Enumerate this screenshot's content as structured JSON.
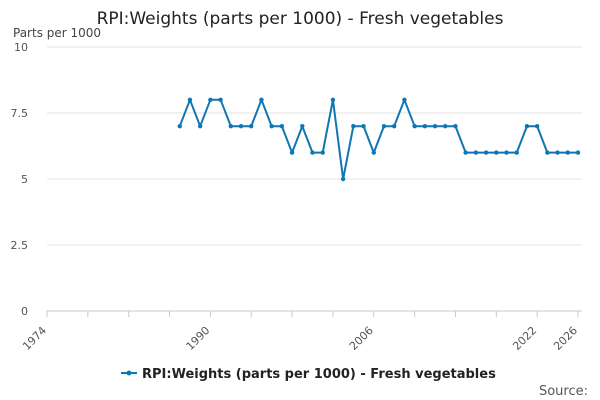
{
  "chart_data": {
    "type": "line",
    "title": "RPI:Weights (parts per 1000) - Fresh vegetables",
    "ylabel": "Parts per 1000",
    "xlabel": "",
    "xlim": [
      1974,
      2026
    ],
    "ylim": [
      0,
      10
    ],
    "y_ticks": [
      "0",
      "2.5",
      "5",
      "7.5",
      "10"
    ],
    "y_tick_values": [
      0,
      2.5,
      5,
      7.5,
      10
    ],
    "x_ticks": [
      "1974",
      "1990",
      "2006",
      "2022",
      "2026"
    ],
    "x_tick_values": [
      1974,
      1990,
      2006,
      2022,
      2026
    ],
    "x_minor_ticks": [
      1978,
      1982,
      1986,
      1994,
      1998,
      2002,
      2010,
      2014,
      2018
    ],
    "grid": true,
    "legend_position": "bottom",
    "series": [
      {
        "name": "RPI:Weights (parts per 1000) - Fresh vegetables",
        "color": "#0e76b3",
        "x": [
          1987,
          1988,
          1989,
          1990,
          1991,
          1992,
          1993,
          1994,
          1995,
          1996,
          1997,
          1998,
          1999,
          2000,
          2001,
          2002,
          2003,
          2004,
          2005,
          2006,
          2007,
          2008,
          2009,
          2010,
          2011,
          2012,
          2013,
          2014,
          2015,
          2016,
          2017,
          2018,
          2019,
          2020,
          2021,
          2022,
          2023,
          2024,
          2025,
          2026
        ],
        "values": [
          7,
          8,
          7,
          8,
          8,
          7,
          7,
          7,
          8,
          7,
          7,
          6,
          7,
          6,
          6,
          8,
          5,
          7,
          7,
          6,
          7,
          7,
          8,
          7,
          7,
          7,
          7,
          7,
          6,
          6,
          6,
          6,
          6,
          6,
          7,
          7,
          6,
          6,
          6,
          6
        ]
      }
    ]
  },
  "footer": {
    "source_label": "Source:"
  }
}
